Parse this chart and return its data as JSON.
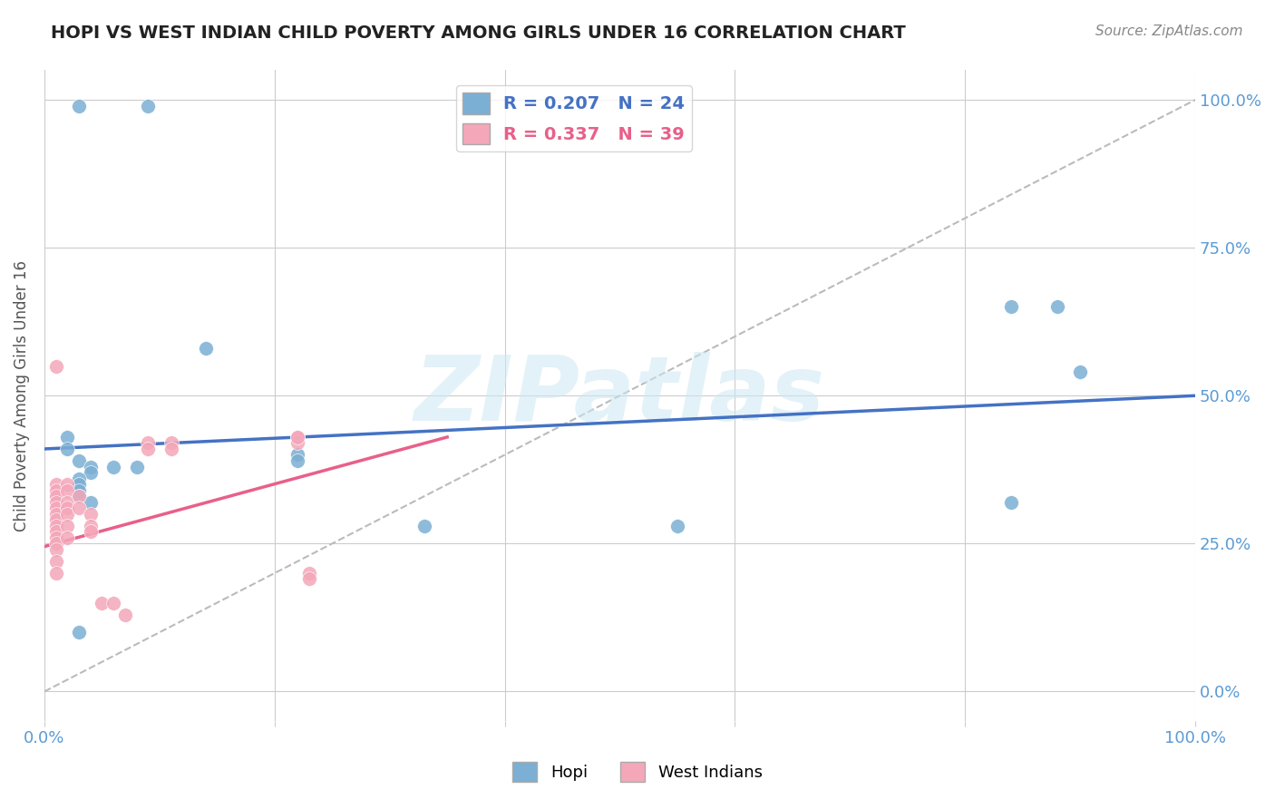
{
  "title": "HOPI VS WEST INDIAN CHILD POVERTY AMONG GIRLS UNDER 16 CORRELATION CHART",
  "source": "Source: ZipAtlas.com",
  "ylabel": "Child Poverty Among Girls Under 16",
  "xlim": [
    0,
    1
  ],
  "ylim": [
    -0.05,
    1.05
  ],
  "ytick_labels": [
    "0.0%",
    "25.0%",
    "50.0%",
    "75.0%",
    "100.0%"
  ],
  "ytick_values": [
    0,
    0.25,
    0.5,
    0.75,
    1.0
  ],
  "xtick_values": [
    0,
    0.2,
    0.4,
    0.6,
    0.8,
    1.0
  ],
  "xtick_labels": [
    "0.0%",
    "",
    "",
    "",
    "",
    "100.0%"
  ],
  "legend_label1": "R = 0.207   N = 24",
  "legend_label2": "R = 0.337   N = 39",
  "hopi_color": "#7bafd4",
  "west_indian_color": "#f4a7b9",
  "hopi_scatter": [
    [
      0.03,
      0.99
    ],
    [
      0.09,
      0.99
    ],
    [
      0.02,
      0.43
    ],
    [
      0.02,
      0.41
    ],
    [
      0.03,
      0.39
    ],
    [
      0.04,
      0.38
    ],
    [
      0.04,
      0.37
    ],
    [
      0.03,
      0.36
    ],
    [
      0.03,
      0.35
    ],
    [
      0.03,
      0.34
    ],
    [
      0.03,
      0.33
    ],
    [
      0.04,
      0.32
    ],
    [
      0.06,
      0.38
    ],
    [
      0.08,
      0.38
    ],
    [
      0.14,
      0.58
    ],
    [
      0.22,
      0.4
    ],
    [
      0.22,
      0.39
    ],
    [
      0.33,
      0.28
    ],
    [
      0.55,
      0.28
    ],
    [
      0.84,
      0.32
    ],
    [
      0.84,
      0.65
    ],
    [
      0.88,
      0.65
    ],
    [
      0.9,
      0.54
    ],
    [
      0.03,
      0.1
    ]
  ],
  "west_indian_scatter": [
    [
      0.01,
      0.55
    ],
    [
      0.01,
      0.35
    ],
    [
      0.01,
      0.34
    ],
    [
      0.01,
      0.33
    ],
    [
      0.01,
      0.32
    ],
    [
      0.01,
      0.31
    ],
    [
      0.01,
      0.3
    ],
    [
      0.01,
      0.29
    ],
    [
      0.01,
      0.28
    ],
    [
      0.01,
      0.27
    ],
    [
      0.01,
      0.26
    ],
    [
      0.01,
      0.25
    ],
    [
      0.01,
      0.24
    ],
    [
      0.01,
      0.22
    ],
    [
      0.01,
      0.2
    ],
    [
      0.02,
      0.35
    ],
    [
      0.02,
      0.34
    ],
    [
      0.02,
      0.32
    ],
    [
      0.02,
      0.31
    ],
    [
      0.02,
      0.3
    ],
    [
      0.02,
      0.28
    ],
    [
      0.02,
      0.26
    ],
    [
      0.03,
      0.33
    ],
    [
      0.03,
      0.31
    ],
    [
      0.04,
      0.3
    ],
    [
      0.04,
      0.28
    ],
    [
      0.04,
      0.27
    ],
    [
      0.05,
      0.15
    ],
    [
      0.06,
      0.15
    ],
    [
      0.07,
      0.13
    ],
    [
      0.09,
      0.42
    ],
    [
      0.09,
      0.41
    ],
    [
      0.11,
      0.42
    ],
    [
      0.11,
      0.41
    ],
    [
      0.22,
      0.43
    ],
    [
      0.22,
      0.42
    ],
    [
      0.23,
      0.2
    ],
    [
      0.23,
      0.19
    ],
    [
      0.22,
      0.43
    ]
  ],
  "hopi_trendline": [
    [
      0,
      0.41
    ],
    [
      1.0,
      0.5
    ]
  ],
  "west_indian_trendline": [
    [
      0,
      0.245
    ],
    [
      0.35,
      0.43
    ]
  ],
  "diagonal_line": [
    [
      0,
      0
    ],
    [
      1.0,
      1.0
    ]
  ],
  "watermark": "ZIPatlas",
  "title_color": "#222222",
  "axis_label_color": "#5b9bd5",
  "tick_label_color": "#5b9bd5",
  "source_color": "#888888",
  "grid_color": "#cccccc",
  "hopi_line_color": "#4472c4",
  "west_indian_line_color": "#e8608a",
  "diagonal_color": "#bbbbbb"
}
